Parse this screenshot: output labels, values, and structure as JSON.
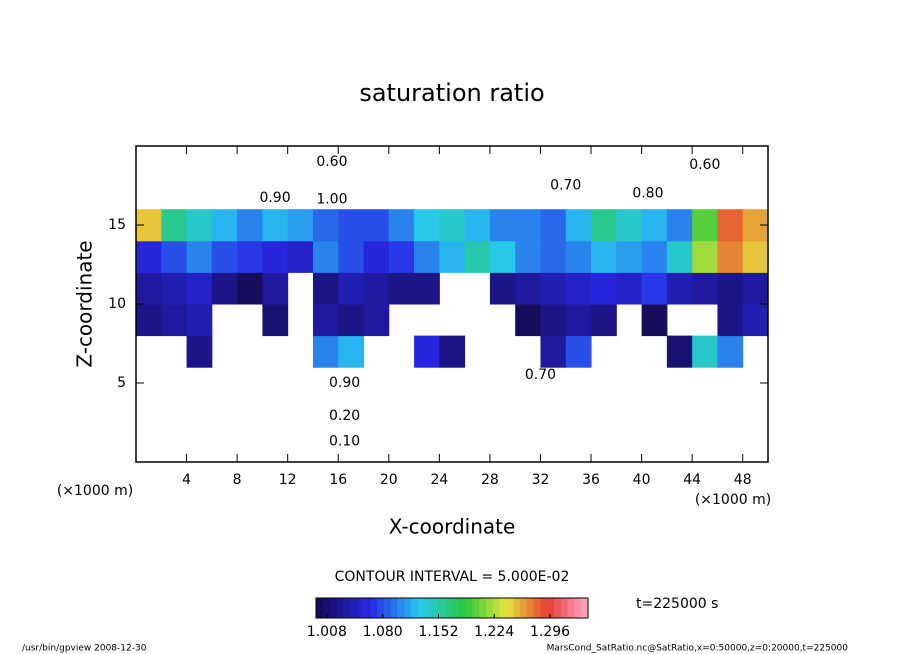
{
  "chart_data": {
    "type": "contour",
    "title": "saturation ratio",
    "xlabel": "X-coordinate",
    "ylabel": "Z-coordinate",
    "xunit_left": "(×1000 m)",
    "xunit_right": "(×1000 m)",
    "xlim": [
      0,
      50
    ],
    "ylim": [
      0,
      20
    ],
    "xticks": [
      4,
      8,
      12,
      16,
      20,
      24,
      28,
      32,
      36,
      40,
      44,
      48
    ],
    "yticks": [
      5,
      10,
      15
    ],
    "x": [
      1,
      3,
      5,
      7,
      9,
      11,
      13,
      15,
      17,
      19,
      21,
      23,
      25,
      27,
      29,
      31,
      33,
      35,
      37,
      39,
      41,
      43,
      45,
      47,
      49
    ],
    "z": [
      1,
      3,
      5,
      7,
      9,
      11,
      13,
      15,
      17,
      19
    ],
    "values": [
      [
        0.1,
        0.1,
        0.1,
        0.1,
        0.1,
        0.1,
        0.1,
        0.1,
        0.1,
        0.1,
        0.1,
        0.1,
        0.1,
        0.1,
        0.1,
        0.1,
        0.1,
        0.1,
        0.1,
        0.1,
        0.1,
        0.1,
        0.1,
        0.1,
        0.1
      ],
      [
        0.25,
        0.25,
        0.25,
        0.25,
        0.25,
        0.25,
        0.25,
        0.25,
        0.25,
        0.25,
        0.25,
        0.25,
        0.25,
        0.25,
        0.25,
        0.25,
        0.25,
        0.25,
        0.25,
        0.25,
        0.25,
        0.25,
        0.25,
        0.25,
        0.25
      ],
      [
        0.85,
        0.85,
        0.85,
        0.85,
        0.85,
        0.85,
        0.85,
        0.85,
        0.85,
        0.85,
        0.85,
        0.85,
        0.85,
        0.85,
        0.85,
        0.85,
        0.85,
        0.85,
        0.85,
        0.85,
        0.85,
        0.85,
        0.85,
        0.85,
        0.85
      ],
      [
        0.95,
        0.98,
        1.02,
        0.97,
        0.95,
        0.96,
        0.97,
        1.1,
        1.12,
        0.98,
        0.97,
        1.06,
        1.02,
        0.96,
        0.97,
        0.98,
        1.03,
        1.08,
        0.96,
        0.95,
        0.97,
        1.01,
        1.14,
        1.1,
        0.97
      ],
      [
        1.02,
        1.03,
        1.04,
        0.98,
        0.97,
        1.01,
        0.98,
        1.03,
        1.02,
        1.03,
        0.97,
        0.98,
        0.96,
        0.97,
        0.98,
        1.0,
        1.02,
        1.03,
        1.02,
        0.97,
        1.0,
        0.97,
        0.98,
        1.02,
        1.04
      ],
      [
        1.03,
        1.04,
        1.05,
        1.02,
        1.0,
        1.03,
        0.98,
        1.02,
        1.04,
        1.03,
        1.02,
        1.02,
        0.99,
        0.98,
        1.02,
        1.03,
        1.04,
        1.05,
        1.06,
        1.05,
        1.07,
        1.04,
        1.03,
        1.02,
        1.03
      ],
      [
        1.06,
        1.08,
        1.1,
        1.08,
        1.07,
        1.06,
        1.05,
        1.1,
        1.08,
        1.06,
        1.07,
        1.1,
        1.12,
        1.15,
        1.13,
        1.1,
        1.09,
        1.1,
        1.12,
        1.11,
        1.1,
        1.14,
        1.22,
        1.27,
        1.25
      ],
      [
        1.25,
        1.16,
        1.14,
        1.12,
        1.1,
        1.12,
        1.11,
        1.09,
        1.08,
        1.08,
        1.1,
        1.13,
        1.14,
        1.12,
        1.1,
        1.1,
        1.09,
        1.12,
        1.16,
        1.14,
        1.12,
        1.1,
        1.2,
        1.28,
        1.26
      ],
      [
        0.9,
        0.9,
        0.9,
        0.9,
        0.9,
        0.9,
        0.9,
        0.9,
        0.9,
        0.9,
        0.9,
        0.9,
        0.9,
        0.9,
        0.9,
        0.9,
        0.9,
        0.9,
        0.9,
        0.9,
        0.9,
        0.9,
        0.9,
        0.9,
        0.9
      ],
      [
        0.65,
        0.65,
        0.65,
        0.65,
        0.65,
        0.65,
        0.65,
        0.65,
        0.65,
        0.65,
        0.65,
        0.65,
        0.65,
        0.65,
        0.65,
        0.65,
        0.65,
        0.65,
        0.65,
        0.65,
        0.65,
        0.65,
        0.65,
        0.65,
        0.65
      ]
    ],
    "contour_labels": [
      {
        "x": 15.5,
        "z": 19,
        "label": "0.60"
      },
      {
        "x": 45,
        "z": 18.8,
        "label": "0.60"
      },
      {
        "x": 34,
        "z": 17.5,
        "label": "0.70"
      },
      {
        "x": 40.5,
        "z": 17,
        "label": "0.80"
      },
      {
        "x": 11,
        "z": 16.7,
        "label": "0.90"
      },
      {
        "x": 15.5,
        "z": 16.6,
        "label": "1.00"
      },
      {
        "x": 16.5,
        "z": 5,
        "label": "0.90"
      },
      {
        "x": 16.5,
        "z": 2.9,
        "label": "0.20"
      },
      {
        "x": 16.5,
        "z": 1.3,
        "label": "0.10"
      },
      {
        "x": 32,
        "z": 5.5,
        "label": "0.70"
      }
    ],
    "contour_interval": "CONTOUR INTERVAL = 5.000E-02",
    "clim": [
      0.994,
      1.345
    ],
    "cticks": [
      1.008,
      {
        "value": 1.08,
        "label": "1.080"
      },
      1.152,
      1.224,
      1.296
    ],
    "time_label": "t=225000 s",
    "footer_left": "/usr/bin/gpview  2008-12-30",
    "footer_right": "MarsCond_SatRatio.nc@SatRatio,x=0:50000,z=0:20000,t=225000"
  }
}
